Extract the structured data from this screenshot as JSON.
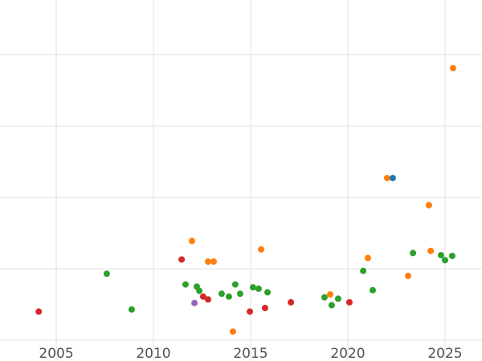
{
  "chart_data": {
    "type": "scatter",
    "title": "",
    "xlabel": "",
    "ylabel": "",
    "grid": true,
    "legend": false,
    "xlim": [
      2002.107,
      2026.901
    ],
    "ylim": [
      -0.292,
      4.764
    ],
    "x_ticks": [
      2005,
      2010,
      2015,
      2020,
      2025
    ],
    "x_tick_labels": [
      "2005",
      "2010",
      "2015",
      "2020",
      "2025"
    ],
    "y_gridlines": [
      0,
      1,
      2,
      3,
      4
    ],
    "y_tick_labels": [],
    "series": [
      {
        "name": "red-series",
        "color": "#d62728",
        "points": [
          [
            2004.1,
            0.4
          ],
          [
            2011.45,
            1.13
          ],
          [
            2012.56,
            0.61
          ],
          [
            2012.81,
            0.57
          ],
          [
            2014.96,
            0.4
          ],
          [
            2015.74,
            0.45
          ],
          [
            2017.07,
            0.53
          ],
          [
            2020.08,
            0.53
          ]
        ]
      },
      {
        "name": "green-series",
        "color": "#2ca02c",
        "points": [
          [
            2007.6,
            0.93
          ],
          [
            2008.88,
            0.43
          ],
          [
            2011.65,
            0.78
          ],
          [
            2012.23,
            0.75
          ],
          [
            2012.36,
            0.69
          ],
          [
            2013.51,
            0.65
          ],
          [
            2013.88,
            0.61
          ],
          [
            2014.21,
            0.78
          ],
          [
            2014.46,
            0.65
          ],
          [
            2015.12,
            0.74
          ],
          [
            2015.41,
            0.72
          ],
          [
            2015.87,
            0.67
          ],
          [
            2018.8,
            0.6
          ],
          [
            2019.17,
            0.49
          ],
          [
            2019.5,
            0.58
          ],
          [
            2020.79,
            0.97
          ],
          [
            2021.28,
            0.7
          ],
          [
            2023.35,
            1.22
          ],
          [
            2024.79,
            1.19
          ],
          [
            2025.0,
            1.12
          ],
          [
            2025.37,
            1.18
          ]
        ]
      },
      {
        "name": "orange-series",
        "color": "#ff7f0e",
        "points": [
          [
            2011.98,
            1.39
          ],
          [
            2012.81,
            1.1
          ],
          [
            2013.1,
            1.1
          ],
          [
            2014.09,
            0.12
          ],
          [
            2015.54,
            1.27
          ],
          [
            2019.09,
            0.64
          ],
          [
            2021.03,
            1.15
          ],
          [
            2022.02,
            2.27
          ],
          [
            2023.1,
            0.9
          ],
          [
            2024.17,
            1.89
          ],
          [
            2024.26,
            1.25
          ],
          [
            2025.41,
            3.81
          ]
        ]
      },
      {
        "name": "blue-series",
        "color": "#1f77b4",
        "points": [
          [
            2022.31,
            2.27
          ]
        ]
      },
      {
        "name": "purple-series",
        "color": "#9467bd",
        "points": [
          [
            2012.11,
            0.52
          ]
        ]
      }
    ]
  },
  "axes": {
    "tick_color": "#525252",
    "grid_color": "#e1e1e1",
    "background": "#ffffff",
    "tick_font_size": 17,
    "marker_radius": 4
  }
}
